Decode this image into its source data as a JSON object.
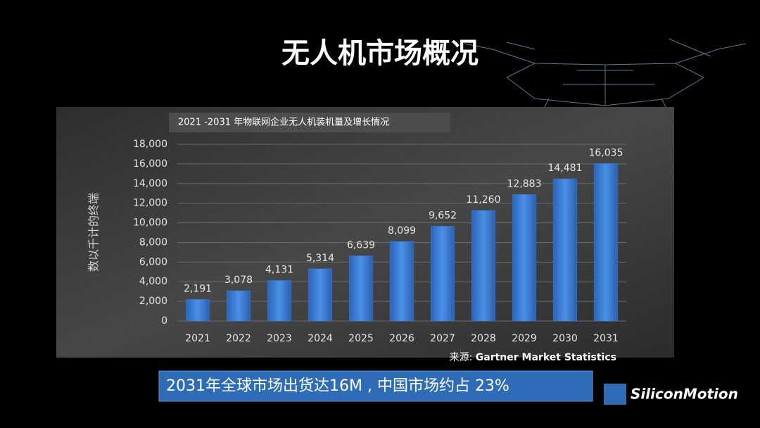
{
  "slide_title": "无人机市场概况",
  "chart_data": {
    "type": "bar",
    "title": "2021 -2031 年物联网企业无人机装机量及增长情况",
    "y_label": "数以千计的终端",
    "categories": [
      "2021",
      "2022",
      "2023",
      "2024",
      "2025",
      "2026",
      "2027",
      "2028",
      "2029",
      "2030",
      "2031"
    ],
    "values": [
      2191,
      3078,
      4131,
      5314,
      6639,
      8099,
      9652,
      11260,
      12883,
      14481,
      16035
    ],
    "value_labels": [
      "2,191",
      "3,078",
      "4,131",
      "5,314",
      "6,639",
      "8,099",
      "9,652",
      "11,260",
      "12,883",
      "14,481",
      "16,035"
    ],
    "color": "#3a7fd5",
    "ylim": [
      0,
      18000
    ],
    "yticks": [
      0,
      {
        "value": 2000,
        "label": "2,000"
      },
      {
        "value": 4000,
        "label": "4,000"
      },
      {
        "value": 6000,
        "label": "6,000"
      },
      {
        "value": 8000,
        "label": "8,000"
      },
      {
        "value": 10000,
        "label": "10,000"
      },
      {
        "value": 12000,
        "label": "12,000"
      },
      {
        "value": 14000,
        "label": "14,000"
      },
      {
        "value": 16000,
        "label": "16,000"
      },
      {
        "value": 18000,
        "label": "18,000"
      }
    ],
    "grid": true,
    "source_prefix": "来源:",
    "source": "Gartner Market Statistics"
  },
  "banner": "2031年全球市场出货达16M , 中国市场约占 23%",
  "logo": "SiliconMotion"
}
